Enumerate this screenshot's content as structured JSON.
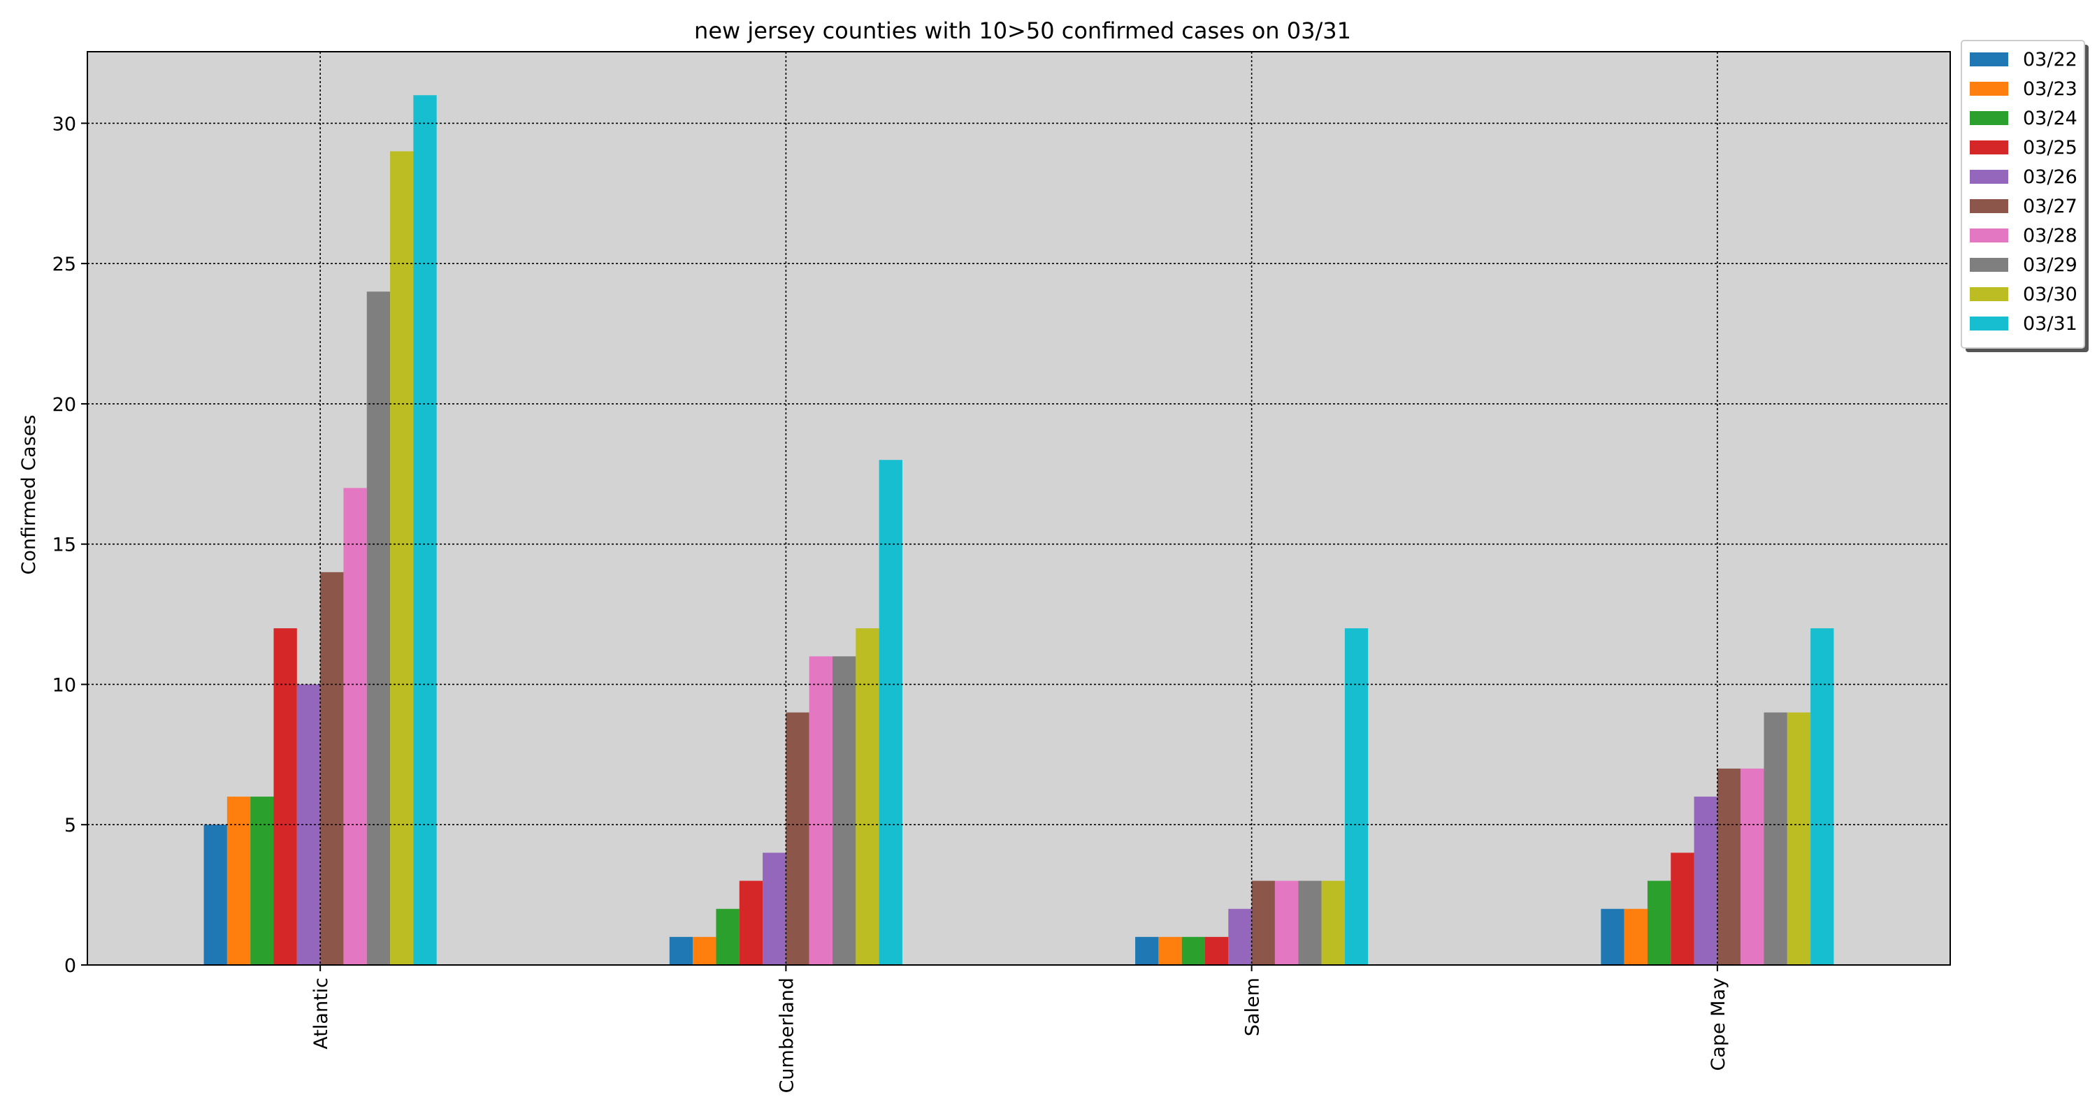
{
  "chart_data": {
    "type": "bar",
    "title": "new jersey counties with 10>50 confirmed cases on 03/31",
    "xlabel": "",
    "ylabel": "Confirmed Cases",
    "categories": [
      "Atlantic",
      "Cumberland",
      "Salem",
      "Cape May"
    ],
    "ylim": [
      0,
      32.55
    ],
    "yticks": [
      0,
      5,
      10,
      15,
      20,
      25,
      30
    ],
    "grid": true,
    "legend_placement": "outside top-right",
    "background_color": "#d3d3d3",
    "series": [
      {
        "name": "03/22",
        "color": "#1f77b4",
        "values": [
          5,
          1,
          1,
          2
        ]
      },
      {
        "name": "03/23",
        "color": "#ff7f0e",
        "values": [
          6,
          1,
          1,
          2
        ]
      },
      {
        "name": "03/24",
        "color": "#2ca02c",
        "values": [
          6,
          2,
          1,
          3
        ]
      },
      {
        "name": "03/25",
        "color": "#d62728",
        "values": [
          12,
          3,
          1,
          4
        ]
      },
      {
        "name": "03/26",
        "color": "#9467bd",
        "values": [
          10,
          4,
          2,
          6
        ]
      },
      {
        "name": "03/27",
        "color": "#8c564b",
        "values": [
          14,
          9,
          3,
          7
        ]
      },
      {
        "name": "03/28",
        "color": "#e377c2",
        "values": [
          17,
          11,
          3,
          7
        ]
      },
      {
        "name": "03/29",
        "color": "#7f7f7f",
        "values": [
          24,
          11,
          3,
          9
        ]
      },
      {
        "name": "03/30",
        "color": "#bcbd22",
        "values": [
          29,
          12,
          3,
          9
        ]
      },
      {
        "name": "03/31",
        "color": "#17becf",
        "values": [
          31,
          18,
          12,
          12
        ]
      }
    ]
  }
}
